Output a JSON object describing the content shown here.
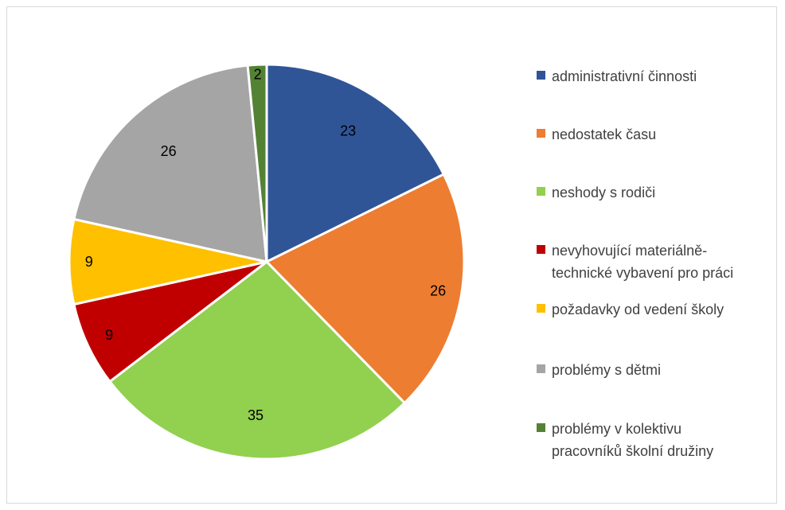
{
  "chart_data": {
    "type": "pie",
    "title": "",
    "categories": [
      "administrativní činnosti",
      "nedostatek času",
      "neshody s rodiči",
      "nevyhovující materiálně-technické vybavení pro práci",
      "požadavky od vedení školy",
      "problémy s dětmi",
      "problémy v kolektivu pracovníků školní družiny"
    ],
    "values": [
      23,
      26,
      35,
      9,
      9,
      26,
      2
    ],
    "labels": [
      "23",
      "26",
      "35",
      "9",
      "9",
      "26",
      "2"
    ],
    "colors": [
      "#2f5597",
      "#ed7d31",
      "#92d050",
      "#c00000",
      "#ffc000",
      "#a5a5a5",
      "#548235"
    ],
    "legend_position": "right",
    "start_angle": "12 o'clock",
    "direction": "clockwise"
  },
  "legend": {
    "items": [
      {
        "lines": [
          "administrativní činnosti"
        ],
        "color": "#2f5597"
      },
      {
        "lines": [
          "nedostatek času"
        ],
        "color": "#ed7d31"
      },
      {
        "lines": [
          "neshody s rodiči"
        ],
        "color": "#92d050"
      },
      {
        "lines": [
          "nevyhovující materiálně-",
          "technické vybavení pro práci"
        ],
        "color": "#c00000"
      },
      {
        "lines": [
          "požadavky od vedení školy"
        ],
        "color": "#ffc000"
      },
      {
        "lines": [
          "problémy s dětmi"
        ],
        "color": "#a5a5a5"
      },
      {
        "lines": [
          "problémy v kolektivu",
          "pracovníků školní družiny"
        ],
        "color": "#548235"
      }
    ]
  }
}
